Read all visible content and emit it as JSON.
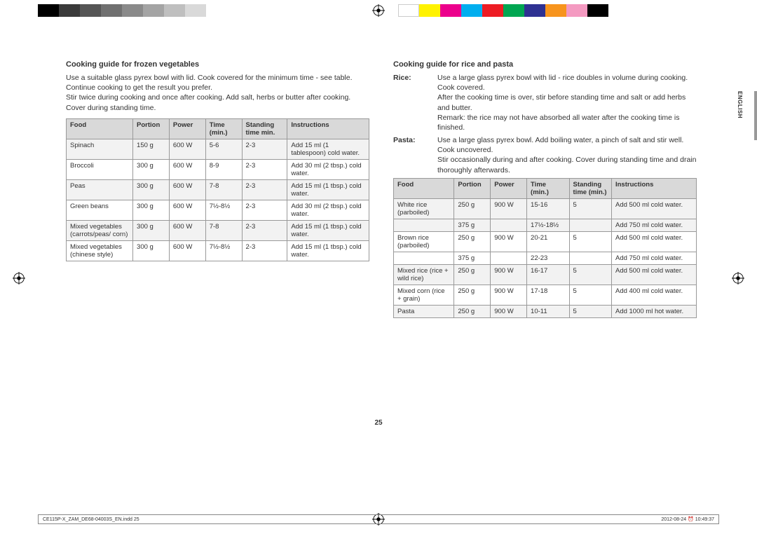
{
  "color_bar_left": [
    "#000000",
    "#3a3a3a",
    "#555555",
    "#707070",
    "#8a8a8a",
    "#a4a4a4",
    "#bfbfbf",
    "#d9d9d9"
  ],
  "color_bar_right": [
    "#ffffff",
    "#fff200",
    "#ec008c",
    "#00aeef",
    "#ed1c24",
    "#00a651",
    "#2e3192",
    "#f7941d",
    "#f49ac1",
    "#000000"
  ],
  "left": {
    "heading": "Cooking guide for frozen vegetables",
    "para": "Use a suitable glass pyrex bowl with lid. Cook covered for the minimum time - see table. Continue cooking to get the result you prefer.\nStir twice during cooking and once after cooking. Add salt, herbs or butter after cooking. Cover during standing time.",
    "columns": [
      "Food",
      "Portion",
      "Power",
      "Time (min.)",
      "Standing time min.",
      "Instructions"
    ],
    "rows": [
      [
        "Spinach",
        "150 g",
        "600 W",
        "5-6",
        "2-3",
        "Add 15 ml (1 tablespoon) cold water."
      ],
      [
        "Broccoli",
        "300 g",
        "600 W",
        "8-9",
        "2-3",
        "Add 30 ml (2 tbsp.) cold water."
      ],
      [
        "Peas",
        "300 g",
        "600 W",
        "7-8",
        "2-3",
        "Add 15 ml (1 tbsp.) cold water."
      ],
      [
        "Green beans",
        "300 g",
        "600 W",
        "7½-8½",
        "2-3",
        "Add 30 ml (2 tbsp.) cold water."
      ],
      [
        "Mixed vegetables (carrots/peas/ corn)",
        "300 g",
        "600 W",
        "7-8",
        "2-3",
        "Add 15 ml (1 tbsp.) cold water."
      ],
      [
        "Mixed vegetables (chinese style)",
        "300 g",
        "600 W",
        "7½-8½",
        "2-3",
        "Add 15 ml (1 tbsp.) cold water."
      ]
    ]
  },
  "right": {
    "heading": "Cooking guide for rice and pasta",
    "defs": [
      {
        "term": "Rice:",
        "desc": "Use a large glass pyrex bowl with lid - rice doubles in volume during cooking. Cook covered.\nAfter the cooking time is over, stir before standing time and salt or add herbs and butter.\nRemark: the rice may not have absorbed all water after the cooking time is finished."
      },
      {
        "term": "Pasta:",
        "desc": "Use a large glass pyrex bowl. Add boiling water, a pinch of salt and stir well. Cook uncovered.\nStir occasionally during and after cooking. Cover during standing time and drain thoroughly afterwards."
      }
    ],
    "columns": [
      "Food",
      "Portion",
      "Power",
      "Time (min.)",
      "Standing time (min.)",
      "Instructions"
    ],
    "rows": [
      {
        "cells": [
          "White rice (parboiled)",
          "250 g",
          "900 W",
          "15-16",
          "5",
          "Add 500 ml cold water."
        ],
        "shade": 0
      },
      {
        "cells": [
          "",
          "375 g",
          "",
          "17½-18½",
          "",
          "Add 750 ml cold water."
        ],
        "shade": 0
      },
      {
        "cells": [
          "Brown rice (parboiled)",
          "250 g",
          "900 W",
          "20-21",
          "5",
          "Add 500 ml cold water."
        ],
        "shade": 1
      },
      {
        "cells": [
          "",
          "375 g",
          "",
          "22-23",
          "",
          "Add 750 ml cold water."
        ],
        "shade": 1
      },
      {
        "cells": [
          "Mixed rice (rice + wild rice)",
          "250 g",
          "900 W",
          "16-17",
          "5",
          "Add 500 ml cold water."
        ],
        "shade": 0
      },
      {
        "cells": [
          "Mixed corn (rice + grain)",
          "250 g",
          "900 W",
          "17-18",
          "5",
          "Add 400 ml cold water."
        ],
        "shade": 1
      },
      {
        "cells": [
          "Pasta",
          "250 g",
          "900 W",
          "10-11",
          "5",
          "Add 1000 ml hot water."
        ],
        "shade": 0
      }
    ]
  },
  "side_label": "ENGLISH",
  "page_number": "25",
  "footer_left": "CE115P-X_ZAM_DE68-04003S_EN.indd   25",
  "footer_right": "2012-08-24   ⏰ 10:49:37",
  "colwidths_left": [
    "22%",
    "12%",
    "12%",
    "12%",
    "15%",
    "27%"
  ],
  "colwidths_right": [
    "20%",
    "12%",
    "12%",
    "14%",
    "14%",
    "28%"
  ]
}
